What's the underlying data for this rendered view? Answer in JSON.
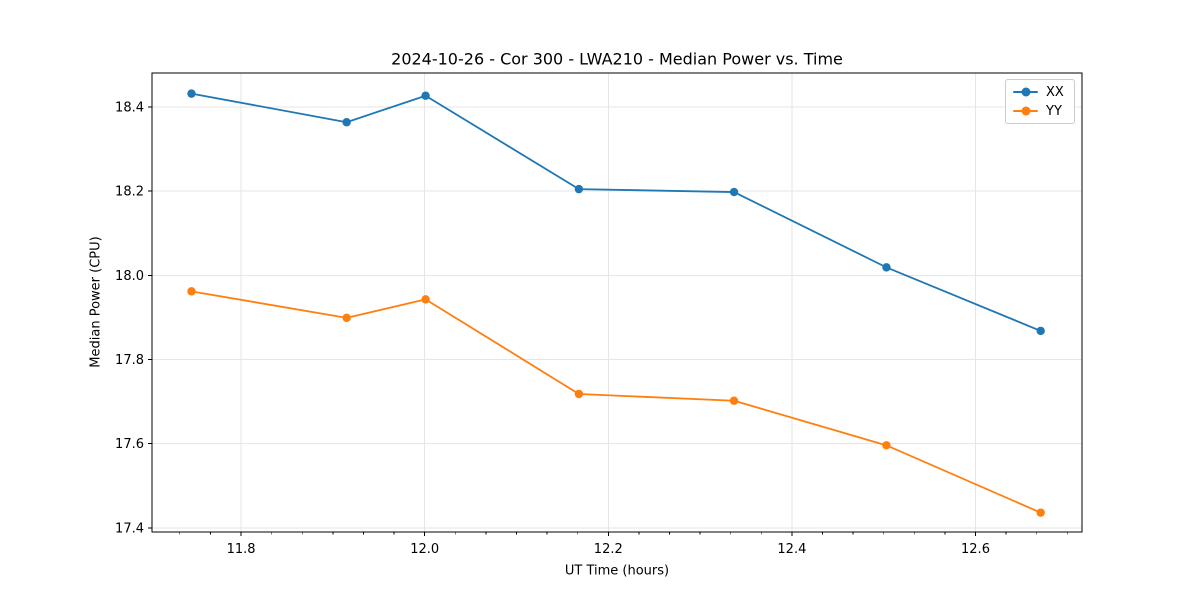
{
  "chart_data": {
    "type": "line",
    "title": "2024-10-26 - Cor 300 - LWA210 - Median Power vs. Time",
    "xlabel": "UT Time (hours)",
    "ylabel": "Median Power (CPU)",
    "x": [
      11.746,
      11.915,
      12.001,
      12.168,
      12.337,
      12.503,
      12.671
    ],
    "series": [
      {
        "name": "XX",
        "color": "#1f77b4",
        "values": [
          18.432,
          18.364,
          18.427,
          18.205,
          18.198,
          18.019,
          17.868
        ]
      },
      {
        "name": "YY",
        "color": "#ff7f0e",
        "values": [
          17.962,
          17.899,
          17.943,
          17.718,
          17.702,
          17.596,
          17.436
        ]
      }
    ],
    "xlim": [
      11.703,
      12.716
    ],
    "ylim": [
      17.39,
      18.481
    ],
    "xticks": [
      11.8,
      12.0,
      12.2,
      12.4,
      12.6
    ],
    "yticks": [
      17.4,
      17.6,
      17.8,
      18.0,
      18.2,
      18.4
    ],
    "x_minor_step": 0.0333333,
    "x_minor_anchor": 11.8,
    "grid": true,
    "grid_color": "#e6e6e6",
    "axis_color": "#000000",
    "marker": "circle",
    "legend": {
      "position": "top-right",
      "entries": [
        "XX",
        "YY"
      ]
    }
  }
}
